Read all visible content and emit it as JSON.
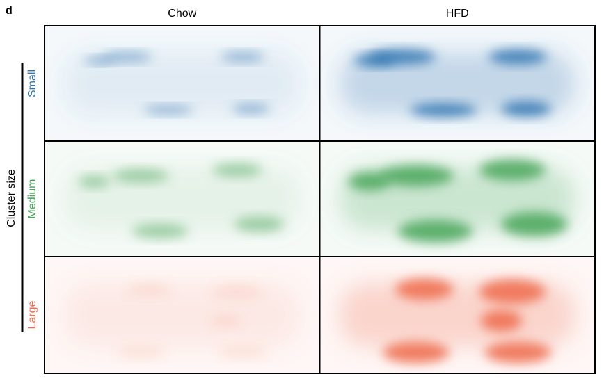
{
  "panel_label": "d",
  "columns": [
    "Chow",
    "HFD"
  ],
  "axis_label": "Cluster size",
  "rows": [
    {
      "label": "Small",
      "color": "#2f74b0"
    },
    {
      "label": "Medium",
      "color": "#49a65a"
    },
    {
      "label": "Large",
      "color": "#ef6a4b"
    }
  ]
}
